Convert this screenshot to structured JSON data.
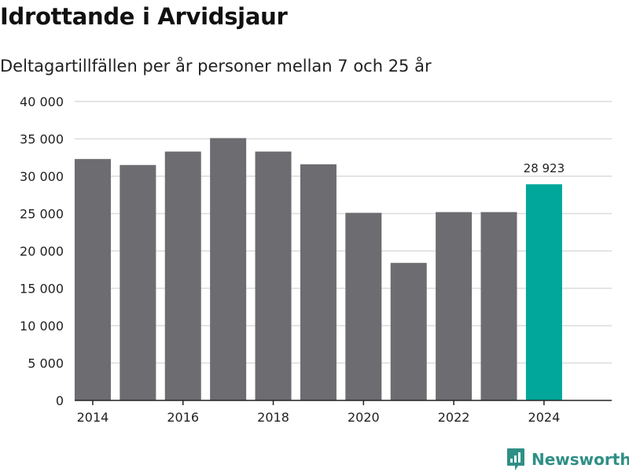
{
  "title": "Idrottande i Arvidsjaur",
  "subtitle": "Deltagartillfällen per år personer mellan 7 och 25 år",
  "brand": {
    "name": "Newsworthy",
    "icon": "newsworthy-logo-icon"
  },
  "colors": {
    "bar": "#6d6c70",
    "highlight": "#00a79a",
    "grid": "#dcdcdc",
    "axis": "#222222",
    "text": "#222222",
    "brand": "#2f8f86"
  },
  "chart_data": {
    "type": "bar",
    "x": [
      2014,
      2015,
      2016,
      2017,
      2018,
      2019,
      2020,
      2021,
      2022,
      2023,
      2024
    ],
    "values": [
      32300,
      31500,
      33300,
      35100,
      33300,
      31600,
      25100,
      18400,
      25200,
      25200,
      28923
    ],
    "highlight_index": 10,
    "data_labels": [
      {
        "index": 10,
        "text": "28 923"
      }
    ],
    "ylim": [
      0,
      40000
    ],
    "yticks": [
      0,
      5000,
      10000,
      15000,
      20000,
      25000,
      30000,
      35000,
      40000
    ],
    "ytick_labels": [
      "0",
      "5 000",
      "10 000",
      "15 000",
      "20 000",
      "25 000",
      "30 000",
      "35 000",
      "40 000"
    ],
    "xticks": [
      2014,
      2016,
      2018,
      2020,
      2022,
      2024
    ],
    "xtick_labels": [
      "2014",
      "2016",
      "2018",
      "2020",
      "2022",
      "2024"
    ],
    "xlabel": "",
    "ylabel": "",
    "grid": true,
    "title": "Idrottande i Arvidsjaur",
    "subtitle": "Deltagartillfällen per år personer mellan 7 och 25 år"
  }
}
